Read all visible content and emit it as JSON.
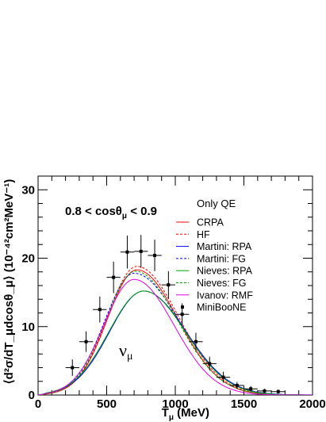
{
  "chart_data": {
    "type": "line",
    "xlabel": "T",
    "xlabel_sub": "μ",
    "xlabel_unit": " (MeV)",
    "ylabel": "⟨d²σ/dT_μdcosθ_μ⟩ (10⁻⁴²cm²MeV⁻¹)",
    "xlim": [
      0,
      2000
    ],
    "ylim": [
      0,
      32
    ],
    "xticks": [
      0,
      500,
      1000,
      1500,
      2000
    ],
    "yticks": [
      0,
      10,
      20,
      30
    ],
    "annotation": "0.8 < cosθ_μ < 0.9",
    "annotation_parts": {
      "pre": "0.8 < cos",
      "theta": "θ",
      "sub": "μ",
      "post": " < 0.9"
    },
    "nu_label": {
      "main": "ν",
      "sub": "μ"
    },
    "legend_title": "Only QE",
    "legend_position": "right",
    "series": [
      {
        "name": "CRPA",
        "color": "#ff0000",
        "dash": "solid",
        "peak_x": 720,
        "peak_y": 18.3,
        "width_lo": 215,
        "width_hi": 300
      },
      {
        "name": "HF",
        "color": "#ff0000",
        "dash": "dashed",
        "peak_x": 720,
        "peak_y": 18.8,
        "width_lo": 215,
        "width_hi": 305
      },
      {
        "name": "Martini: RPA",
        "color": "#0000ff",
        "dash": "solid",
        "peak_x": 770,
        "peak_y": 15.2,
        "width_lo": 250,
        "width_hi": 310
      },
      {
        "name": "Martini: FG",
        "color": "#0000ff",
        "dash": "dashed",
        "peak_x": 700,
        "peak_y": 17.8,
        "width_lo": 215,
        "width_hi": 330
      },
      {
        "name": "Nieves: RPA",
        "color": "#00a000",
        "dash": "solid",
        "peak_x": 770,
        "peak_y": 15.2,
        "width_lo": 255,
        "width_hi": 305
      },
      {
        "name": "Nieves: FG",
        "color": "#00a000",
        "dash": "dashed",
        "peak_x": 710,
        "peak_y": 18.1,
        "width_lo": 215,
        "width_hi": 305
      },
      {
        "name": "Ivanov: RMF",
        "color": "#e000e0",
        "dash": "solid",
        "peak_x": 700,
        "peak_y": 16.9,
        "width_lo": 220,
        "width_hi": 290
      }
    ],
    "data_series": {
      "name": "MiniBooNE",
      "x": [
        250,
        350,
        450,
        550,
        650,
        750,
        850,
        950,
        1050,
        1150,
        1250,
        1350,
        1450,
        1550,
        1650,
        1750
      ],
      "y": [
        4.0,
        7.8,
        12.5,
        17.2,
        20.9,
        21.0,
        20.4,
        16.1,
        11.8,
        7.8,
        4.6,
        2.6,
        1.4,
        0.9,
        0.6,
        0.5
      ],
      "yerr": [
        1.2,
        1.5,
        1.9,
        2.3,
        2.4,
        2.4,
        2.3,
        2.0,
        1.6,
        1.3,
        1.0,
        0.8,
        0.5,
        0.4,
        0.3,
        0.3
      ],
      "xerr": 50
    }
  }
}
